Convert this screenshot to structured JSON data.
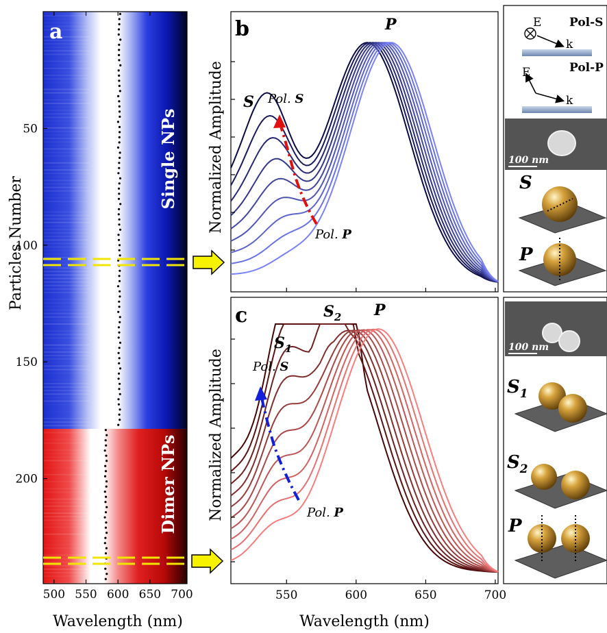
{
  "panel_a": {
    "label": "a",
    "ylabel": "Particles Number",
    "xlabel": "Wavelength (nm)",
    "yticks": [
      "50",
      "100",
      "150",
      "200"
    ],
    "xticks": [
      "500",
      "550",
      "600",
      "650",
      "700"
    ],
    "single_label": "Single NPs",
    "dimer_label": "Dimer NPs",
    "colors": {
      "single": "#1e32d2",
      "dimer": "#e01515",
      "marker": "#f0e600",
      "arrow": "#f7f200"
    }
  },
  "panel_b": {
    "label": "b",
    "ylabel": "Normalized Amplitude",
    "peak_s": "S",
    "peak_p": "P",
    "pol_s": "Pol. S",
    "pol_p": "Pol. P"
  },
  "panel_c": {
    "label": "c",
    "ylabel": "Normalized Amplitude",
    "xlabel": "Wavelength (nm)",
    "xticks": [
      "550",
      "600",
      "650",
      "700"
    ],
    "peak_s1": "S1",
    "peak_s2": "S2",
    "peak_p": "P",
    "pol_s": "Pol. S",
    "pol_p": "Pol. P"
  },
  "schematic": {
    "pol_s_label": "Pol-S",
    "pol_p_label": "Pol-P",
    "e_label": "E",
    "k_label": "k",
    "scale_bar": "100 nm",
    "mode_s": "S",
    "mode_p": "P",
    "mode_s1": "S1",
    "mode_s2": "S2"
  },
  "chart_data": [
    {
      "type": "heatmap",
      "xlabel": "Wavelength (nm)",
      "ylabel": "Particles Number",
      "xlim": [
        483,
        708
      ],
      "ylim": [
        0,
        245
      ],
      "single_rows": [
        1,
        177
      ],
      "dimer_rows": [
        178,
        245
      ],
      "peak_single_nm": 602,
      "peak_dimer_nm": 581,
      "marked_rows": [
        114,
        236
      ]
    },
    {
      "type": "line",
      "ylabel": "Normalized Amplitude",
      "xlim": [
        510,
        702
      ],
      "s_peak_nm": 538,
      "p_peak_nm_range": [
        608,
        625
      ],
      "n_curves": 9,
      "shading": "dark to light blue"
    },
    {
      "type": "line",
      "xlabel": "Wavelength (nm)",
      "ylabel": "Normalized Amplitude",
      "xlim": [
        510,
        702
      ],
      "xticks": [
        550,
        600,
        650,
        700
      ],
      "s1_peak_nm": 548,
      "s2_peak_nm": 584,
      "p_peak_nm_range": [
        584,
        616
      ],
      "n_curves": 10,
      "shading": "dark to light red"
    }
  ]
}
